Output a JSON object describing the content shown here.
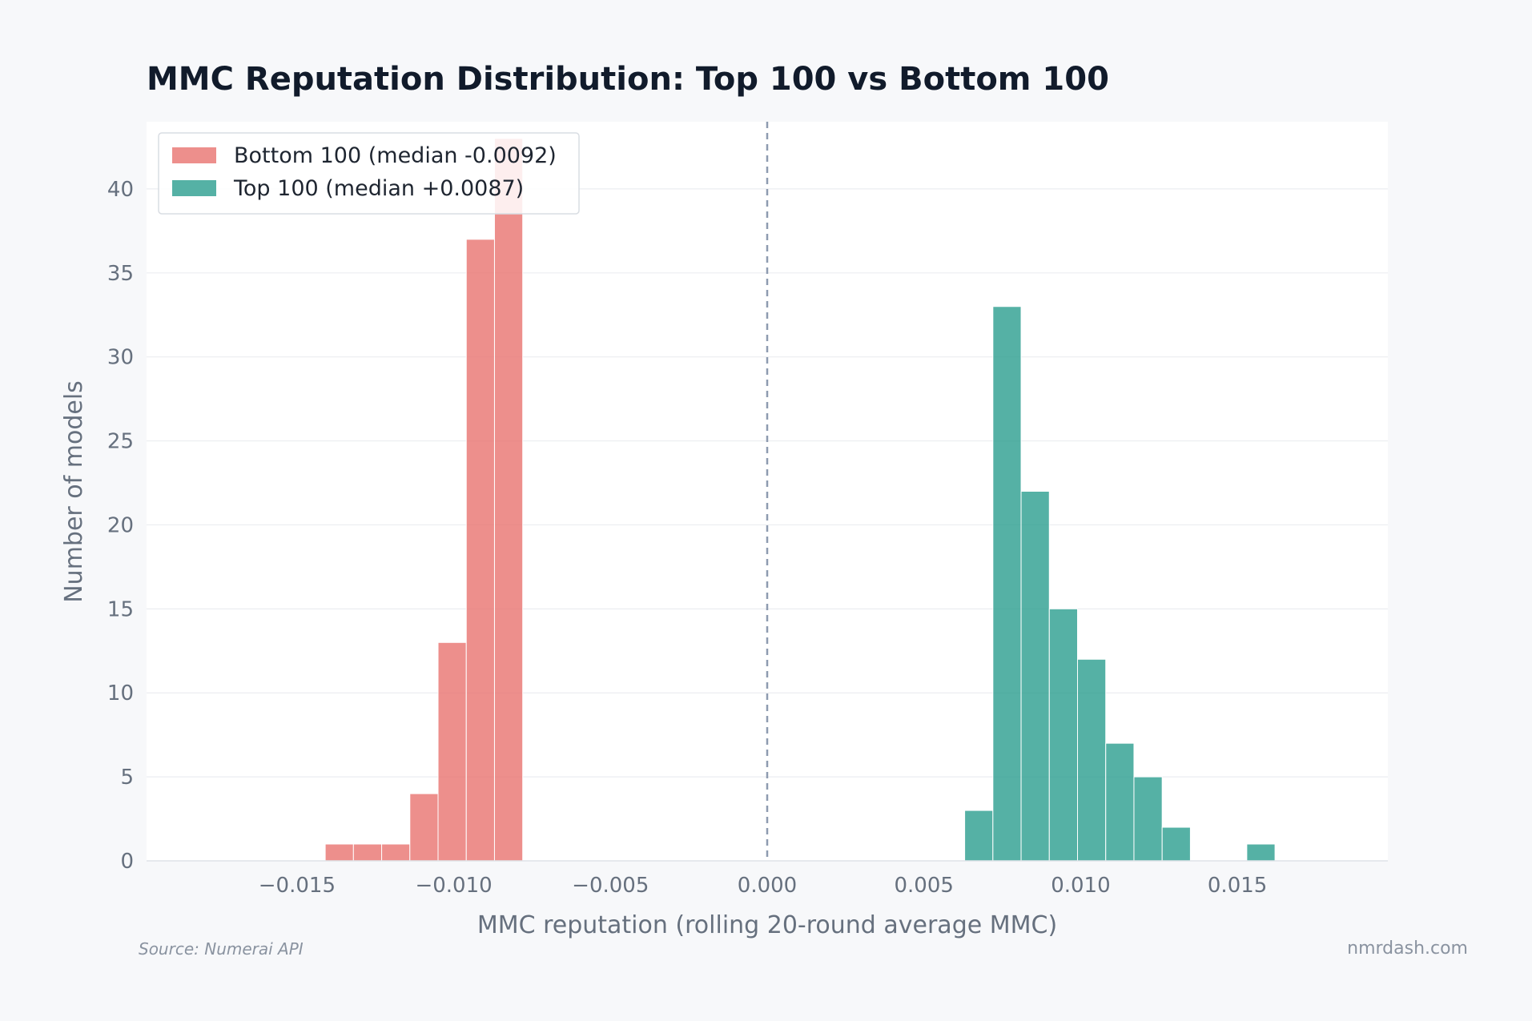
{
  "chart_data": {
    "type": "bar",
    "title": "MMC Reputation Distribution: Top 100 vs Bottom 100",
    "xlabel": "MMC reputation (rolling 20-round average MMC)",
    "ylabel": "Number of models",
    "xlim": [
      -0.0198,
      0.0198
    ],
    "ylim": [
      0,
      44
    ],
    "xticks": [
      -0.015,
      -0.01,
      -0.005,
      0.0,
      0.005,
      0.01,
      0.015
    ],
    "xtick_labels": [
      "−0.015",
      "−0.010",
      "−0.005",
      "0.000",
      "0.005",
      "0.010",
      "0.015"
    ],
    "yticks": [
      0,
      5,
      10,
      15,
      20,
      25,
      30,
      35,
      40
    ],
    "ytick_labels": [
      "0",
      "5",
      "10",
      "15",
      "20",
      "25",
      "30",
      "35",
      "40"
    ],
    "grid": "horizontal",
    "legend_position": "top-left",
    "reference_line": {
      "x": 0.0,
      "style": "dashed",
      "color": "#8e9bb0"
    },
    "series": [
      {
        "name": "Bottom 100 (median -0.0092)",
        "color": "#e8736f",
        "bins": [
          {
            "x0": -0.0141,
            "x1": -0.0132,
            "count": 1
          },
          {
            "x0": -0.0132,
            "x1": -0.0123,
            "count": 1
          },
          {
            "x0": -0.0123,
            "x1": -0.0114,
            "count": 1
          },
          {
            "x0": -0.0114,
            "x1": -0.0105,
            "count": 4
          },
          {
            "x0": -0.0105,
            "x1": -0.0096,
            "count": 13
          },
          {
            "x0": -0.0096,
            "x1": -0.0087,
            "count": 37
          },
          {
            "x0": -0.0087,
            "x1": -0.0078,
            "count": 43
          }
        ]
      },
      {
        "name": "Top 100 (median +0.0087)",
        "color": "#2a9d8f",
        "bins": [
          {
            "x0": 0.0063,
            "x1": 0.0072,
            "count": 3
          },
          {
            "x0": 0.0072,
            "x1": 0.0081,
            "count": 33
          },
          {
            "x0": 0.0081,
            "x1": 0.009,
            "count": 22
          },
          {
            "x0": 0.009,
            "x1": 0.0099,
            "count": 15
          },
          {
            "x0": 0.0099,
            "x1": 0.0108,
            "count": 12
          },
          {
            "x0": 0.0108,
            "x1": 0.0117,
            "count": 7
          },
          {
            "x0": 0.0117,
            "x1": 0.0126,
            "count": 5
          },
          {
            "x0": 0.0126,
            "x1": 0.0135,
            "count": 2
          },
          {
            "x0": 0.0135,
            "x1": 0.0144,
            "count": 0
          },
          {
            "x0": 0.0144,
            "x1": 0.0153,
            "count": 0
          },
          {
            "x0": 0.0153,
            "x1": 0.0162,
            "count": 1
          }
        ]
      }
    ]
  },
  "footer": {
    "source": "Source: Numerai API",
    "brand": "nmrdash.com"
  }
}
